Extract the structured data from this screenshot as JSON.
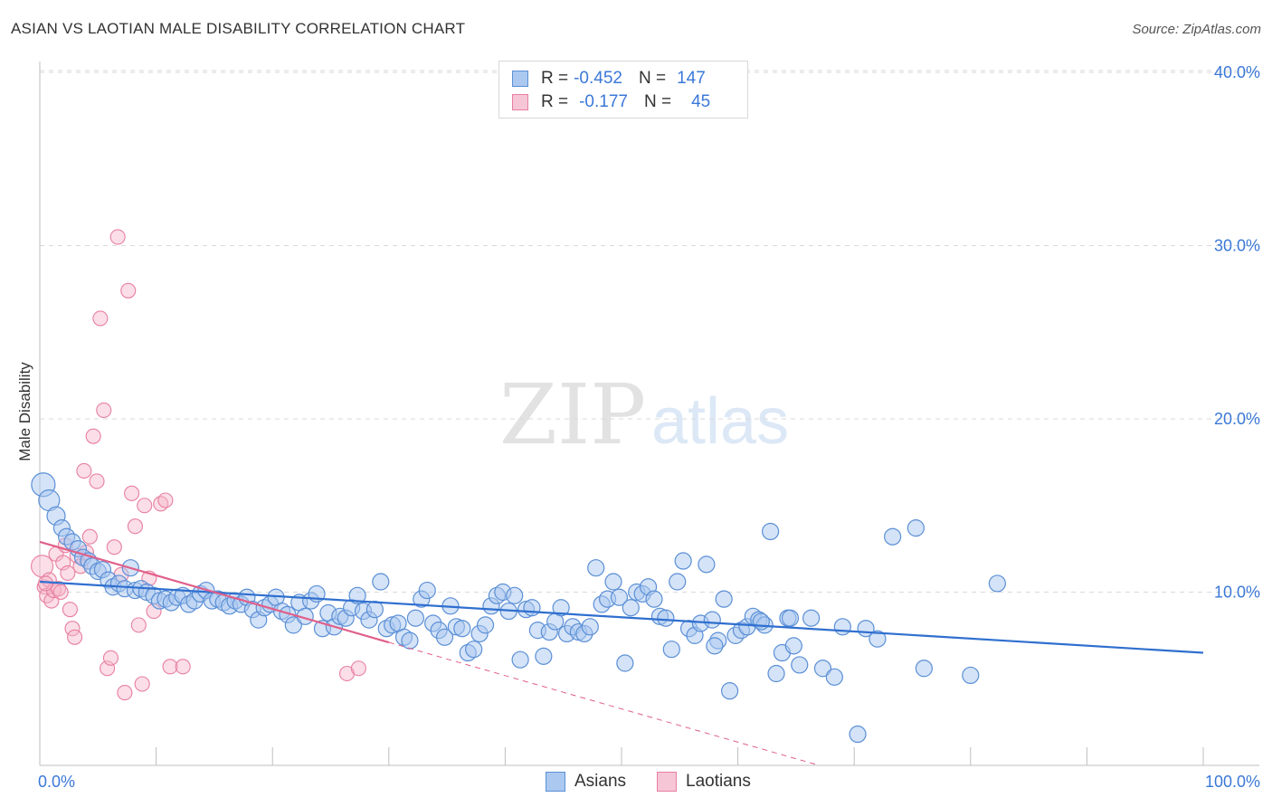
{
  "header": {
    "title": "ASIAN VS LAOTIAN MALE DISABILITY CORRELATION CHART",
    "source": "Source: ZipAtlas.com"
  },
  "watermark": {
    "zip": "ZIP",
    "atlas": "atlas"
  },
  "legend": {
    "rows": [
      {
        "r_label": "R =",
        "r_value": "-0.452",
        "n_label": "N =",
        "n_value": "147"
      },
      {
        "r_label": "R =",
        "r_value": "-0.177",
        "n_label": "N =",
        "n_value": "45"
      }
    ]
  },
  "bottom_legend": {
    "asians": "Asians",
    "laotians": "Laotians"
  },
  "colors": {
    "asian_fill": "#aac8f0",
    "asian_stroke": "#5b8fd6",
    "asian_line": "#2f6fcf",
    "laotian_fill": "#f6b6c9",
    "laotian_stroke": "#e87fa0",
    "laotian_line": "#e0608a",
    "tick_label": "#3b78d8",
    "grid": "#d9d9d9"
  },
  "chart_data": {
    "type": "scatter",
    "title": "ASIAN VS LAOTIAN MALE DISABILITY CORRELATION CHART",
    "xlabel": "",
    "ylabel": "Male Disability",
    "xlim": [
      0,
      100
    ],
    "ylim": [
      0,
      42
    ],
    "x_tick_labels": [
      "0.0%",
      "100.0%"
    ],
    "y_ticks": [
      10,
      20,
      30,
      40
    ],
    "y_tick_labels": [
      "10.0%",
      "20.0%",
      "30.0%",
      "40.0%"
    ],
    "grid": true,
    "series": [
      {
        "name": "Asians",
        "r": -0.452,
        "n": 147,
        "trend": {
          "x": [
            0,
            100
          ],
          "y": [
            10.6,
            6.5
          ]
        },
        "points": [
          [
            0.3,
            16.2
          ],
          [
            0.8,
            15.3
          ],
          [
            1.4,
            14.4
          ],
          [
            1.9,
            13.7
          ],
          [
            2.3,
            13.2
          ],
          [
            2.8,
            12.9
          ],
          [
            3.3,
            12.5
          ],
          [
            3.7,
            12.0
          ],
          [
            4.2,
            11.8
          ],
          [
            4.5,
            11.5
          ],
          [
            5.0,
            11.2
          ],
          [
            5.4,
            11.3
          ],
          [
            5.9,
            10.7
          ],
          [
            6.3,
            10.3
          ],
          [
            6.8,
            10.5
          ],
          [
            7.3,
            10.2
          ],
          [
            7.8,
            11.4
          ],
          [
            8.2,
            10.1
          ],
          [
            8.7,
            10.2
          ],
          [
            9.2,
            10.0
          ],
          [
            9.8,
            9.8
          ],
          [
            10.3,
            9.5
          ],
          [
            10.8,
            9.6
          ],
          [
            11.3,
            9.4
          ],
          [
            11.8,
            9.7
          ],
          [
            12.3,
            9.8
          ],
          [
            12.8,
            9.3
          ],
          [
            13.3,
            9.5
          ],
          [
            13.8,
            9.9
          ],
          [
            14.3,
            10.1
          ],
          [
            14.8,
            9.5
          ],
          [
            15.3,
            9.6
          ],
          [
            15.8,
            9.4
          ],
          [
            16.3,
            9.2
          ],
          [
            16.8,
            9.5
          ],
          [
            17.3,
            9.3
          ],
          [
            17.8,
            9.7
          ],
          [
            18.3,
            9.0
          ],
          [
            18.8,
            8.4
          ],
          [
            19.3,
            9.1
          ],
          [
            19.8,
            9.3
          ],
          [
            20.3,
            9.7
          ],
          [
            20.8,
            8.9
          ],
          [
            21.3,
            8.7
          ],
          [
            21.8,
            8.1
          ],
          [
            22.3,
            9.4
          ],
          [
            22.8,
            8.6
          ],
          [
            23.3,
            9.5
          ],
          [
            23.8,
            9.9
          ],
          [
            24.3,
            7.9
          ],
          [
            24.8,
            8.8
          ],
          [
            25.3,
            8.0
          ],
          [
            25.8,
            8.6
          ],
          [
            26.3,
            8.5
          ],
          [
            26.8,
            9.1
          ],
          [
            27.3,
            9.8
          ],
          [
            27.8,
            8.9
          ],
          [
            28.3,
            8.4
          ],
          [
            28.8,
            9.0
          ],
          [
            29.3,
            10.6
          ],
          [
            29.8,
            7.9
          ],
          [
            30.3,
            8.1
          ],
          [
            30.8,
            8.2
          ],
          [
            31.3,
            7.4
          ],
          [
            31.8,
            7.2
          ],
          [
            32.3,
            8.5
          ],
          [
            32.8,
            9.6
          ],
          [
            33.3,
            10.1
          ],
          [
            33.8,
            8.2
          ],
          [
            34.3,
            7.8
          ],
          [
            34.8,
            7.4
          ],
          [
            35.3,
            9.2
          ],
          [
            35.8,
            8.0
          ],
          [
            36.3,
            7.9
          ],
          [
            36.8,
            6.5
          ],
          [
            37.3,
            6.7
          ],
          [
            37.8,
            7.6
          ],
          [
            38.3,
            8.1
          ],
          [
            38.8,
            9.2
          ],
          [
            39.3,
            9.8
          ],
          [
            39.8,
            10.0
          ],
          [
            40.3,
            8.9
          ],
          [
            40.8,
            9.8
          ],
          [
            41.3,
            6.1
          ],
          [
            41.8,
            9.0
          ],
          [
            42.3,
            9.1
          ],
          [
            42.8,
            7.8
          ],
          [
            43.3,
            6.3
          ],
          [
            43.8,
            7.7
          ],
          [
            44.3,
            8.3
          ],
          [
            44.8,
            9.1
          ],
          [
            45.3,
            7.6
          ],
          [
            45.8,
            8.0
          ],
          [
            46.3,
            7.7
          ],
          [
            46.8,
            7.6
          ],
          [
            47.3,
            8.0
          ],
          [
            47.8,
            11.4
          ],
          [
            48.3,
            9.3
          ],
          [
            48.8,
            9.6
          ],
          [
            49.3,
            10.6
          ],
          [
            49.8,
            9.7
          ],
          [
            50.3,
            5.9
          ],
          [
            50.8,
            9.1
          ],
          [
            51.3,
            10.0
          ],
          [
            51.8,
            9.9
          ],
          [
            52.3,
            10.3
          ],
          [
            52.8,
            9.6
          ],
          [
            53.3,
            8.6
          ],
          [
            53.8,
            8.5
          ],
          [
            54.3,
            6.7
          ],
          [
            54.8,
            10.6
          ],
          [
            55.3,
            11.8
          ],
          [
            55.8,
            7.9
          ],
          [
            56.3,
            7.5
          ],
          [
            56.8,
            8.2
          ],
          [
            57.3,
            11.6
          ],
          [
            57.8,
            8.4
          ],
          [
            58.3,
            7.2
          ],
          [
            58.8,
            9.6
          ],
          [
            59.3,
            4.3
          ],
          [
            59.8,
            7.5
          ],
          [
            60.3,
            7.8
          ],
          [
            60.8,
            8.0
          ],
          [
            61.3,
            8.6
          ],
          [
            61.8,
            8.4
          ],
          [
            62.3,
            8.1
          ],
          [
            62.8,
            13.5
          ],
          [
            63.3,
            5.3
          ],
          [
            63.8,
            6.5
          ],
          [
            64.3,
            8.5
          ],
          [
            64.8,
            6.9
          ],
          [
            65.3,
            5.8
          ],
          [
            66.3,
            8.5
          ],
          [
            67.3,
            5.6
          ],
          [
            68.3,
            5.1
          ],
          [
            70.3,
            1.8
          ],
          [
            73.3,
            13.2
          ],
          [
            75.3,
            13.7
          ],
          [
            82.3,
            10.5
          ],
          [
            62.0,
            8.3
          ],
          [
            64.5,
            8.5
          ],
          [
            58.0,
            6.9
          ],
          [
            71.0,
            7.9
          ],
          [
            69.0,
            8.0
          ],
          [
            72.0,
            7.3
          ],
          [
            76.0,
            5.6
          ],
          [
            80.0,
            5.2
          ]
        ]
      },
      {
        "name": "Laotians",
        "r": -0.177,
        "n": 45,
        "trend": {
          "x": [
            0,
            30
          ],
          "y": [
            12.9,
            7.1
          ]
        },
        "trend_extension": {
          "x": [
            30,
            67
          ],
          "y": [
            7.1,
            0
          ]
        },
        "points": [
          [
            0.2,
            11.5
          ],
          [
            0.4,
            10.3
          ],
          [
            0.6,
            9.8
          ],
          [
            0.8,
            10.7
          ],
          [
            1.0,
            9.5
          ],
          [
            1.2,
            10.1
          ],
          [
            1.4,
            12.2
          ],
          [
            1.6,
            10.2
          ],
          [
            1.8,
            10.0
          ],
          [
            2.0,
            11.7
          ],
          [
            2.2,
            12.7
          ],
          [
            2.4,
            11.1
          ],
          [
            2.6,
            9.0
          ],
          [
            2.8,
            7.9
          ],
          [
            3.0,
            7.4
          ],
          [
            3.2,
            12.1
          ],
          [
            3.5,
            11.5
          ],
          [
            3.8,
            17.0
          ],
          [
            4.0,
            12.3
          ],
          [
            4.3,
            13.2
          ],
          [
            4.6,
            19.0
          ],
          [
            4.9,
            16.4
          ],
          [
            5.2,
            25.8
          ],
          [
            5.5,
            20.5
          ],
          [
            5.8,
            5.6
          ],
          [
            6.1,
            6.2
          ],
          [
            6.4,
            12.6
          ],
          [
            6.7,
            30.5
          ],
          [
            7.0,
            11.0
          ],
          [
            7.3,
            4.2
          ],
          [
            7.6,
            27.4
          ],
          [
            7.9,
            15.7
          ],
          [
            8.2,
            13.8
          ],
          [
            8.5,
            8.1
          ],
          [
            8.8,
            4.7
          ],
          [
            9.0,
            15.0
          ],
          [
            9.4,
            10.8
          ],
          [
            9.8,
            8.9
          ],
          [
            10.4,
            15.1
          ],
          [
            10.8,
            15.3
          ],
          [
            11.2,
            5.7
          ],
          [
            12.3,
            5.7
          ],
          [
            26.4,
            5.3
          ],
          [
            27.4,
            5.6
          ],
          [
            0.5,
            10.5
          ]
        ]
      }
    ]
  }
}
